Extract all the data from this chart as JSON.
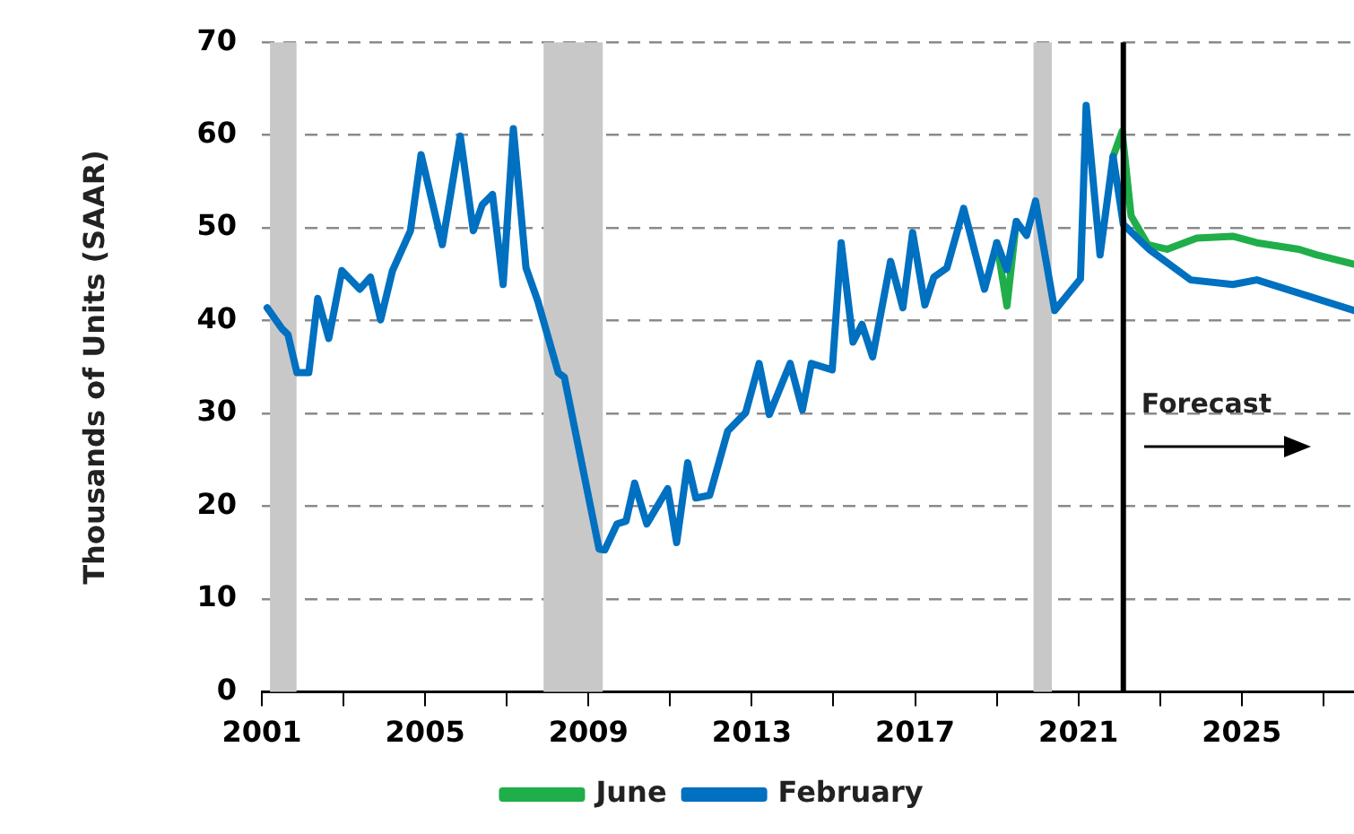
{
  "chart_data": {
    "type": "line",
    "ylabel": "Thousands of Units (SAAR)",
    "xlim": [
      2001,
      2027.75
    ],
    "xticks": [
      2001,
      {
        "value": 2003,
        "label": null
      },
      2005,
      {
        "value": 2007,
        "label": null
      },
      2009,
      {
        "value": 2011,
        "label": null
      },
      2013,
      {
        "value": 2015,
        "label": null
      },
      2017,
      {
        "value": 2019,
        "label": null
      },
      2021,
      {
        "value": 2023,
        "label": null
      },
      2025,
      {
        "value": 2027,
        "label": null
      }
    ],
    "ylim": [
      0,
      70
    ],
    "yticks": [
      0,
      10,
      20,
      30,
      40,
      50,
      60,
      70
    ],
    "grid": "y",
    "legend": "bottom",
    "bands": [
      {
        "axis": "x",
        "from": 2001.2,
        "to": 2001.85,
        "color": "#c8c8c8"
      },
      {
        "axis": "x",
        "from": 2007.9,
        "to": 2009.35,
        "color": "#c8c8c8"
      },
      {
        "axis": "x",
        "from": 2019.9,
        "to": 2020.35,
        "color": "#c8c8c8"
      }
    ],
    "ref_lines": [
      {
        "axis": "x",
        "value": 2022.1,
        "color": "#000000"
      }
    ],
    "annotations": [
      "Forecast"
    ],
    "series": [
      {
        "name": "June",
        "color": "#1fae4a",
        "x": [
          2019.0,
          2019.25,
          2019.48,
          2020.0,
          2021.85,
          2022.07,
          2022.29,
          2022.7,
          2023.17,
          2023.9,
          2024.78,
          2025.37,
          2026.4,
          2026.83,
          2027.75
        ],
        "values": [
          48.4,
          41.6,
          50.7,
          null,
          57.7,
          60.4,
          51.3,
          48.2,
          47.7,
          48.9,
          49.1,
          48.4,
          47.7,
          47.1,
          46.1
        ]
      },
      {
        "name": "February",
        "color": "#0070c0",
        "x": [
          2001.13,
          2001.5,
          2001.64,
          2001.86,
          2002.15,
          2002.37,
          2002.64,
          2002.96,
          2003.4,
          2003.66,
          2003.91,
          2004.2,
          2004.64,
          2004.9,
          2005.42,
          2005.86,
          2006.18,
          2006.4,
          2006.65,
          2006.91,
          2007.16,
          2007.47,
          2007.76,
          2008.26,
          2008.41,
          2009.26,
          2009.4,
          2009.7,
          2009.92,
          2010.13,
          2010.43,
          2010.94,
          2011.16,
          2011.43,
          2011.63,
          2011.97,
          2012.41,
          2012.85,
          2013.18,
          2013.43,
          2013.94,
          2014.24,
          2014.46,
          2014.97,
          2015.19,
          2015.48,
          2015.7,
          2015.96,
          2016.4,
          2016.7,
          2016.94,
          2017.24,
          2017.46,
          2017.78,
          2018.19,
          2018.7,
          2019.0,
          2019.25,
          2019.48,
          2019.73,
          2019.95,
          2020.42,
          2021.05,
          2021.19,
          2021.53,
          2021.85,
          2022.1,
          2022.73,
          2023.75,
          2024.78,
          2025.37,
          2027.75
        ],
        "values": [
          41.4,
          39.1,
          38.5,
          34.4,
          34.4,
          42.4,
          38.1,
          45.4,
          43.4,
          44.7,
          40.1,
          45.4,
          49.7,
          57.9,
          48.2,
          59.9,
          49.7,
          52.5,
          53.6,
          43.9,
          60.7,
          45.7,
          42.1,
          34.4,
          33.9,
          15.4,
          15.3,
          18.1,
          18.4,
          22.5,
          18.1,
          21.9,
          16.1,
          24.7,
          20.9,
          21.2,
          28.1,
          30.1,
          35.4,
          29.9,
          35.4,
          30.4,
          35.4,
          34.7,
          48.4,
          37.7,
          39.6,
          36.1,
          46.4,
          41.4,
          49.5,
          41.7,
          44.7,
          45.7,
          52.1,
          43.4,
          48.4,
          45.5,
          50.7,
          49.2,
          52.9,
          41.1,
          44.5,
          63.2,
          47.1,
          57.7,
          50.4,
          47.7,
          44.4,
          43.9,
          44.4,
          41.1
        ]
      }
    ]
  }
}
